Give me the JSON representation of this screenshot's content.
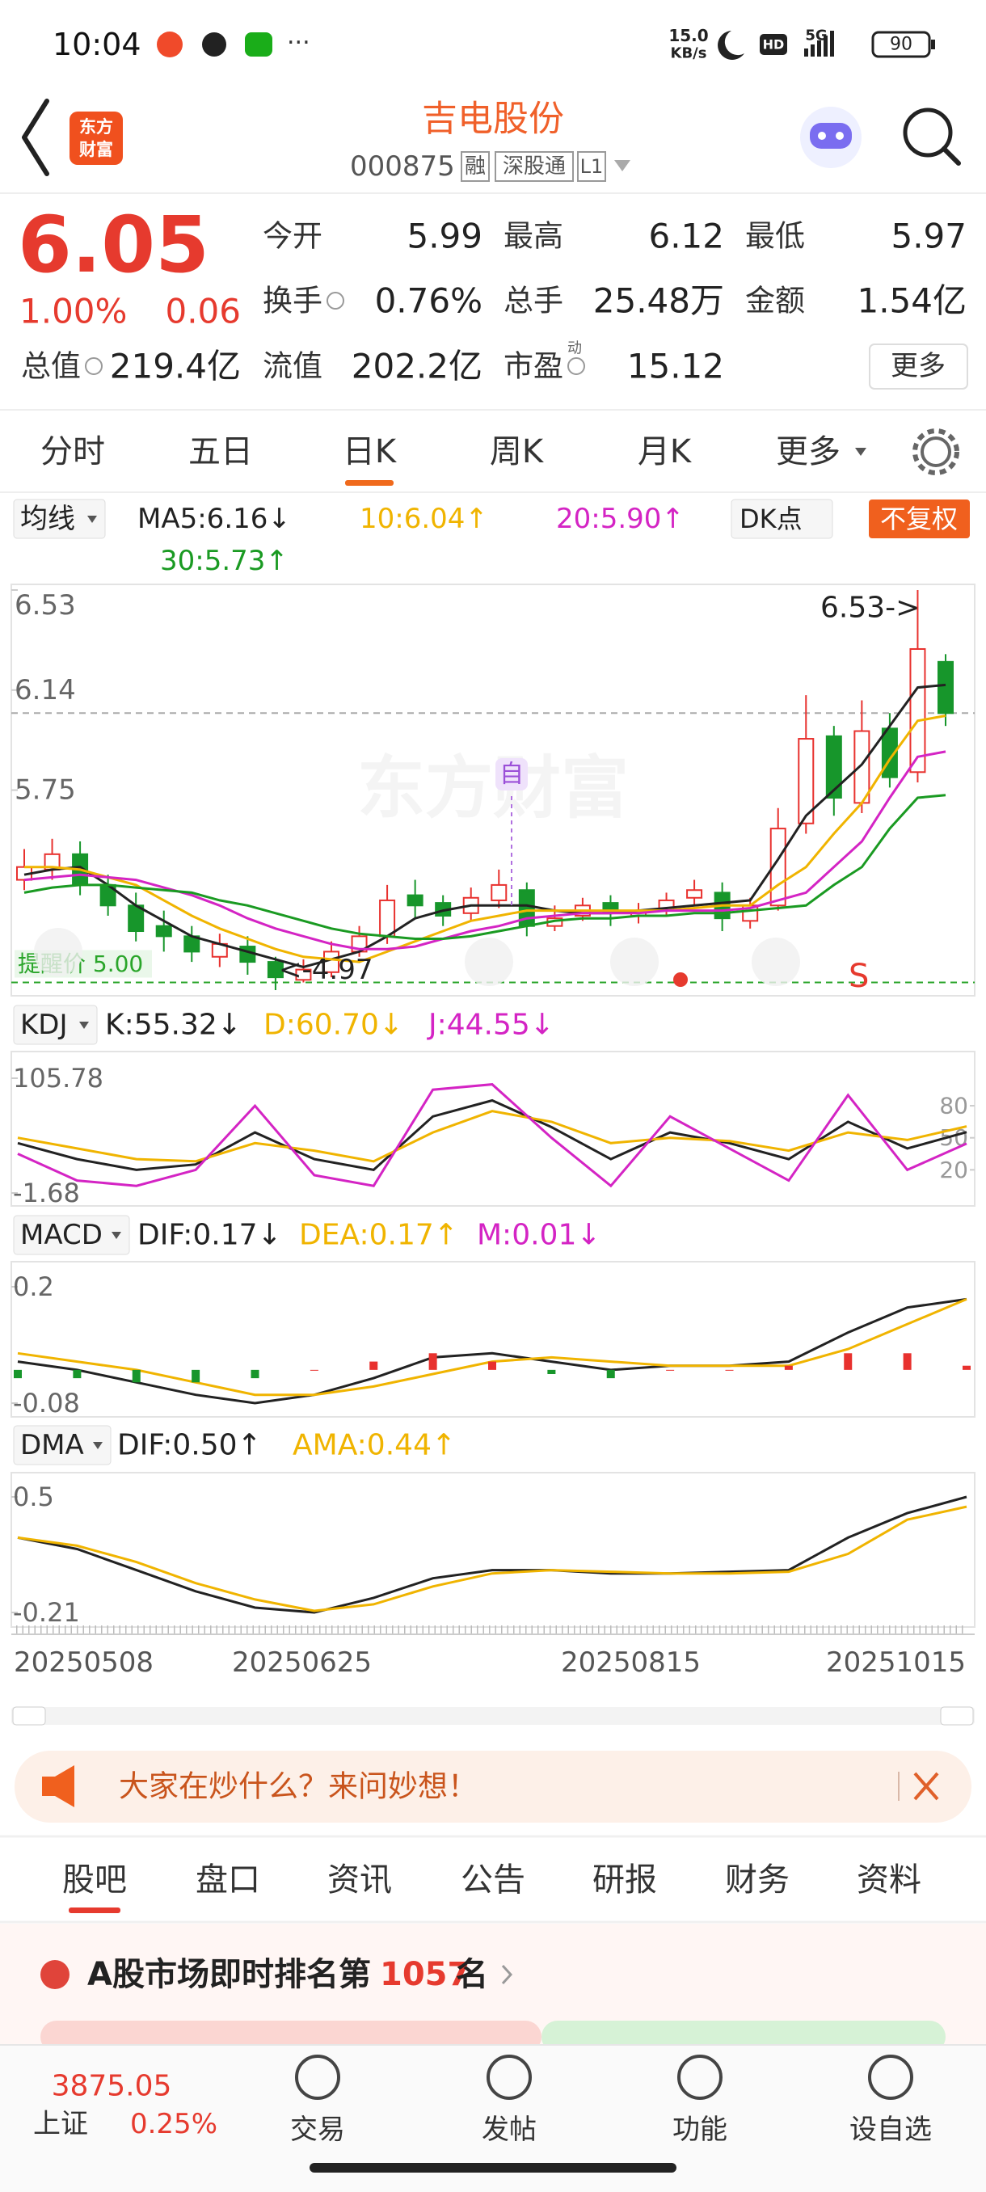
{
  "status_bar": {
    "time": "10:04",
    "net_speed": "15.0",
    "net_unit": "KB/s",
    "hd": "HD",
    "network": "5G",
    "battery": "90"
  },
  "header": {
    "logo": [
      "东方",
      "财富"
    ],
    "title": "吉电股份",
    "code": "000875",
    "tags": [
      "融",
      "深股通",
      "L1"
    ]
  },
  "quote": {
    "price": "6.05",
    "change_pct": "1.00%",
    "change": "0.06",
    "fields": [
      {
        "label": "今开",
        "value": "5.99"
      },
      {
        "label": "最高",
        "value": "6.12"
      },
      {
        "label": "最低",
        "value": "5.97"
      },
      {
        "label": "换手",
        "value": "0.76%"
      },
      {
        "label": "总手",
        "value": "25.48万"
      },
      {
        "label": "金额",
        "value": "1.54亿"
      },
      {
        "label": "总值",
        "value": "219.4亿"
      },
      {
        "label": "流值",
        "value": "202.2亿"
      },
      {
        "label": "市盈",
        "note": "动",
        "value": "15.12"
      }
    ],
    "more": "更多"
  },
  "period_tabs": {
    "items": [
      "分时",
      "五日",
      "日K",
      "周K",
      "月K",
      "更多"
    ],
    "selected": 2
  },
  "chart_data": [
    {
      "type": "candlestick",
      "indicator": "均线",
      "buttons": [
        "DK点",
        "不复权"
      ],
      "watermark": "东方财富",
      "open": [
        5.4,
        5.44,
        5.5,
        5.38,
        5.3,
        5.22,
        5.18,
        5.1,
        5.14,
        5.08,
        5.01,
        5.04,
        5.12,
        5.18,
        5.34,
        5.31,
        5.27,
        5.32,
        5.36,
        5.22,
        5.26,
        5.31,
        5.26,
        5.28,
        5.33,
        5.35,
        5.24,
        5.3,
        5.62,
        5.96,
        5.7,
        5.99,
        5.82,
        6.25
      ],
      "high": [
        5.52,
        5.56,
        5.55,
        5.42,
        5.35,
        5.28,
        5.22,
        5.19,
        5.18,
        5.1,
        5.09,
        5.16,
        5.22,
        5.38,
        5.4,
        5.34,
        5.37,
        5.44,
        5.39,
        5.3,
        5.33,
        5.34,
        5.31,
        5.35,
        5.4,
        5.39,
        5.33,
        5.68,
        6.12,
        6.0,
        6.1,
        6.05,
        6.53,
        6.28
      ],
      "low": [
        5.36,
        5.4,
        5.34,
        5.26,
        5.16,
        5.12,
        5.08,
        5.06,
        5.03,
        4.97,
        5.0,
        5.02,
        5.1,
        5.15,
        5.25,
        5.22,
        5.24,
        5.29,
        5.18,
        5.2,
        5.24,
        5.22,
        5.23,
        5.26,
        5.3,
        5.2,
        5.21,
        5.28,
        5.58,
        5.65,
        5.66,
        5.76,
        5.78,
        6.0
      ],
      "close": [
        5.45,
        5.5,
        5.38,
        5.3,
        5.2,
        5.18,
        5.12,
        5.15,
        5.08,
        5.02,
        5.05,
        5.12,
        5.18,
        5.32,
        5.3,
        5.26,
        5.33,
        5.38,
        5.22,
        5.25,
        5.3,
        5.27,
        5.28,
        5.32,
        5.36,
        5.25,
        5.3,
        5.6,
        5.95,
        5.72,
        5.98,
        5.8,
        6.3,
        6.05
      ],
      "up_color": "#e8312e",
      "down_color": "#17962b",
      "series": [
        {
          "name": "MA5:6.16↓",
          "color": "#222222",
          "values": [
            5.42,
            5.44,
            5.45,
            5.38,
            5.3,
            5.24,
            5.18,
            5.15,
            5.12,
            5.09,
            5.06,
            5.09,
            5.12,
            5.18,
            5.25,
            5.28,
            5.3,
            5.3,
            5.3,
            5.28,
            5.27,
            5.27,
            5.28,
            5.29,
            5.3,
            5.31,
            5.32,
            5.48,
            5.65,
            5.75,
            5.85,
            6.0,
            6.15,
            6.16
          ]
        },
        {
          "name": "10:6.04↑",
          "color": "#f0b400",
          "values": [
            5.45,
            5.45,
            5.44,
            5.41,
            5.38,
            5.32,
            5.26,
            5.21,
            5.17,
            5.13,
            5.1,
            5.09,
            5.08,
            5.12,
            5.16,
            5.2,
            5.24,
            5.26,
            5.28,
            5.28,
            5.28,
            5.28,
            5.28,
            5.28,
            5.29,
            5.3,
            5.3,
            5.38,
            5.45,
            5.58,
            5.7,
            5.87,
            6.02,
            6.04
          ]
        },
        {
          "name": "20:5.90↑",
          "color": "#d424c4",
          "values": [
            5.4,
            5.41,
            5.42,
            5.41,
            5.4,
            5.37,
            5.34,
            5.3,
            5.25,
            5.21,
            5.18,
            5.15,
            5.13,
            5.13,
            5.14,
            5.17,
            5.2,
            5.22,
            5.25,
            5.26,
            5.27,
            5.27,
            5.27,
            5.28,
            5.28,
            5.28,
            5.29,
            5.32,
            5.35,
            5.45,
            5.55,
            5.72,
            5.88,
            5.9
          ]
        },
        {
          "name": "30:5.73↑",
          "color": "#1a9a22",
          "values": [
            5.35,
            5.37,
            5.38,
            5.38,
            5.37,
            5.36,
            5.35,
            5.32,
            5.3,
            5.27,
            5.24,
            5.21,
            5.19,
            5.18,
            5.17,
            5.17,
            5.18,
            5.2,
            5.22,
            5.24,
            5.25,
            5.25,
            5.26,
            5.26,
            5.27,
            5.27,
            5.28,
            5.29,
            5.3,
            5.38,
            5.45,
            5.6,
            5.72,
            5.73
          ]
        }
      ],
      "ylim": [
        4.97,
        6.53
      ],
      "yticks": [
        6.53,
        6.14,
        5.75
      ],
      "reference_lines": [
        {
          "value": 6.05,
          "color": "#aaaaaa"
        },
        {
          "value": 5.0,
          "label": "提醒价 5.00",
          "color": "#2aa52a"
        }
      ],
      "annotations": [
        "6.53->",
        "<-4.97",
        "自",
        "S"
      ],
      "x_labels": [
        "20250508",
        "20250625",
        "20250815",
        "20251015"
      ]
    },
    {
      "type": "line",
      "indicator": "KDJ",
      "ylim": [
        -1.68,
        105.78
      ],
      "yticks": [
        105.78,
        -1.68
      ],
      "y2ticks": [
        80,
        50,
        20
      ],
      "series": [
        {
          "name": "K:55.32↓",
          "color": "#222222",
          "values": [
            45,
            30,
            20,
            25,
            55,
            30,
            20,
            70,
            85,
            60,
            30,
            55,
            45,
            30,
            65,
            40,
            55.32
          ]
        },
        {
          "name": "D:60.70↓",
          "color": "#f0b400",
          "values": [
            50,
            40,
            30,
            28,
            45,
            38,
            28,
            55,
            75,
            65,
            45,
            50,
            47,
            38,
            55,
            48,
            60.7
          ]
        },
        {
          "name": "J:44.55↓",
          "color": "#d424c4",
          "values": [
            35,
            10,
            5,
            20,
            80,
            15,
            5,
            95,
            100,
            50,
            5,
            70,
            40,
            10,
            90,
            20,
            44.55
          ]
        }
      ]
    },
    {
      "type": "line",
      "indicator": "MACD",
      "ylim": [
        -0.08,
        0.2
      ],
      "yticks": [
        0.2,
        -0.08
      ],
      "series": [
        {
          "name": "DIF:0.17↓",
          "color": "#222222",
          "values": [
            0.02,
            0.0,
            -0.03,
            -0.06,
            -0.08,
            -0.06,
            -0.02,
            0.03,
            0.04,
            0.02,
            0.0,
            0.01,
            0.01,
            0.02,
            0.09,
            0.15,
            0.17
          ]
        },
        {
          "name": "DEA:0.17↑",
          "color": "#f0b400",
          "values": [
            0.04,
            0.02,
            0.0,
            -0.03,
            -0.06,
            -0.06,
            -0.04,
            -0.01,
            0.02,
            0.03,
            0.02,
            0.01,
            0.01,
            0.01,
            0.05,
            0.11,
            0.17
          ]
        },
        {
          "name": "M:0.01↓",
          "color": "#d424c4",
          "style": "bar",
          "up_color": "#e8312e",
          "down_color": "#17962b",
          "values": [
            -0.02,
            -0.02,
            -0.03,
            -0.03,
            -0.02,
            0.0,
            0.02,
            0.04,
            0.02,
            -0.01,
            -0.02,
            0.0,
            0.0,
            0.01,
            0.04,
            0.04,
            0.01
          ]
        }
      ]
    },
    {
      "type": "line",
      "indicator": "DMA",
      "ylim": [
        -0.21,
        0.5
      ],
      "yticks": [
        0.5,
        -0.21
      ],
      "series": [
        {
          "name": "DIF:0.50↑",
          "color": "#222222",
          "values": [
            0.25,
            0.18,
            0.05,
            -0.08,
            -0.18,
            -0.21,
            -0.12,
            0.0,
            0.05,
            0.05,
            0.03,
            0.03,
            0.04,
            0.05,
            0.25,
            0.4,
            0.5
          ]
        },
        {
          "name": "AMA:0.44↑",
          "color": "#f0b400",
          "values": [
            0.25,
            0.2,
            0.1,
            -0.03,
            -0.13,
            -0.2,
            -0.16,
            -0.05,
            0.03,
            0.05,
            0.04,
            0.03,
            0.03,
            0.04,
            0.15,
            0.36,
            0.44
          ]
        }
      ]
    }
  ],
  "banner": {
    "text": "大家在炒什么？来问妙想！"
  },
  "section_tabs": {
    "items": [
      "股吧",
      "盘口",
      "资讯",
      "公告",
      "研报",
      "财务",
      "资料"
    ],
    "selected": 0
  },
  "ranking": {
    "prefix": "A股市场即时排名第",
    "rank": "1057",
    "suffix": "名"
  },
  "bottom_nav": {
    "index": {
      "value": "3875.05",
      "name": "上证",
      "change": "0.25%"
    },
    "items": [
      "交易",
      "发帖",
      "功能",
      "设自选"
    ]
  }
}
